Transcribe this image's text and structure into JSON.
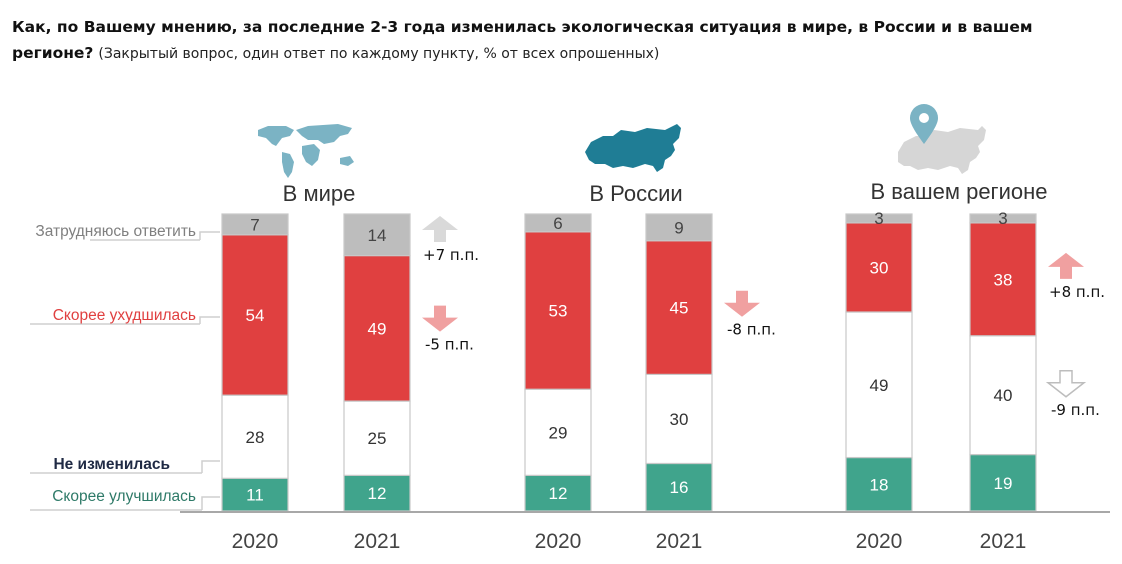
{
  "title": {
    "bold": "Как, по Вашему мнению, за последние 2-3 года изменилась экологическая ситуация в мире, в России и в вашем регионе?",
    "note": "(Закрытый вопрос, один ответ по каждому пункту, % от всех опрошенных)"
  },
  "colors": {
    "hard_to_say": "#bdbdbd",
    "worse": "#e04040",
    "unchanged": "#ffffff",
    "better": "#40a48c",
    "arrow_up_gray": "#d9d9d9",
    "arrow_red": "#f0a0a0",
    "arrow_outline": "#bdbdbd",
    "legend_hard": "#808080",
    "legend_worse": "#e04040",
    "legend_unchanged": "#1f2a44",
    "legend_better": "#2e7a68",
    "world_icon": "#7bb3c4",
    "russia_icon": "#1f7d95",
    "region_icon": "#d6d6d6",
    "pin": "#7bb3c4"
  },
  "chart_data": {
    "type": "bar",
    "stacked": true,
    "title": "Как, по Вашему мнению, за последние 2-3 года изменилась экологическая ситуация в мире, в России и в вашем регионе?",
    "xlabel": "",
    "ylabel": "% от всех опрошенных",
    "ylim": [
      0,
      100
    ],
    "grid": false,
    "legend_placement": "left",
    "series_names": [
      "Скорее улучшилась",
      "Не изменилась",
      "Скорее ухудшилась",
      "Затрудняюсь ответить"
    ],
    "groups": [
      {
        "name": "В мире",
        "icon": "world-map-icon",
        "bars": [
          {
            "year": "2020",
            "better": 11,
            "unchanged": 28,
            "worse": 54,
            "hard": 7
          },
          {
            "year": "2021",
            "better": 12,
            "unchanged": 25,
            "worse": 49,
            "hard": 14
          }
        ],
        "deltas": [
          {
            "series": "hard",
            "text": "+7 п.п.",
            "direction": "up",
            "style": "gray"
          },
          {
            "series": "worse",
            "text": "-5 п.п.",
            "direction": "down",
            "style": "red"
          }
        ]
      },
      {
        "name": "В России",
        "icon": "russia-map-icon",
        "bars": [
          {
            "year": "2020",
            "better": 12,
            "unchanged": 29,
            "worse": 53,
            "hard": 6
          },
          {
            "year": "2021",
            "better": 16,
            "unchanged": 30,
            "worse": 45,
            "hard": 9
          }
        ],
        "deltas": [
          {
            "series": "worse",
            "text": "-8 п.п.",
            "direction": "down",
            "style": "red"
          }
        ]
      },
      {
        "name": "В вашем регионе",
        "icon": "region-pin-map-icon",
        "bars": [
          {
            "year": "2020",
            "better": 18,
            "unchanged": 49,
            "worse": 30,
            "hard": 3
          },
          {
            "year": "2021",
            "better": 19,
            "unchanged": 40,
            "worse": 38,
            "hard": 3
          }
        ],
        "deltas": [
          {
            "series": "worse",
            "text": "+8 п.п.",
            "direction": "up",
            "style": "red"
          },
          {
            "series": "unchanged",
            "text": "-9 п.п.",
            "direction": "down",
            "style": "outline"
          }
        ]
      }
    ]
  },
  "legend": {
    "hard": "Затрудняюсь ответить",
    "worse": "Скорее ухудшилась",
    "unchanged": "Не изменилась",
    "better": "Скорее улучшилась"
  }
}
